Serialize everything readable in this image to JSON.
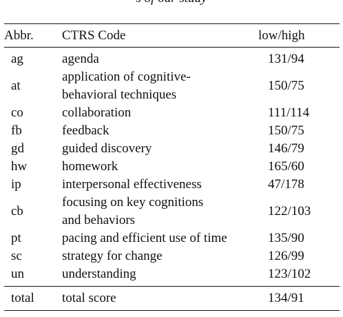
{
  "caption_fragment": "s of our study",
  "table": {
    "headers": {
      "abbr": "Abbr.",
      "code": "CTRS Code",
      "ratio": "low/high"
    },
    "rows": [
      {
        "abbr": "ag",
        "code": [
          "agenda"
        ],
        "ratio": "131/94"
      },
      {
        "abbr": "at",
        "code": [
          "application of cognitive-",
          "behavioral techniques"
        ],
        "ratio": "150/75"
      },
      {
        "abbr": "co",
        "code": [
          "collaboration"
        ],
        "ratio": "111/114"
      },
      {
        "abbr": "fb",
        "code": [
          "feedback"
        ],
        "ratio": "150/75"
      },
      {
        "abbr": "gd",
        "code": [
          "guided discovery"
        ],
        "ratio": "146/79"
      },
      {
        "abbr": "hw",
        "code": [
          "homework"
        ],
        "ratio": "165/60"
      },
      {
        "abbr": "ip",
        "code": [
          "interpersonal effectiveness"
        ],
        "ratio": "47/178"
      },
      {
        "abbr": "cb",
        "code": [
          "focusing on key cognitions",
          "and behaviors"
        ],
        "ratio": "122/103"
      },
      {
        "abbr": "pt",
        "code": [
          "pacing and efficient use of time"
        ],
        "ratio": "135/90"
      },
      {
        "abbr": "sc",
        "code": [
          "strategy for change"
        ],
        "ratio": "126/99"
      },
      {
        "abbr": "un",
        "code": [
          "understanding"
        ],
        "ratio": "123/102"
      }
    ],
    "total": {
      "abbr": "total",
      "code": "total score",
      "ratio": "134/91"
    }
  }
}
